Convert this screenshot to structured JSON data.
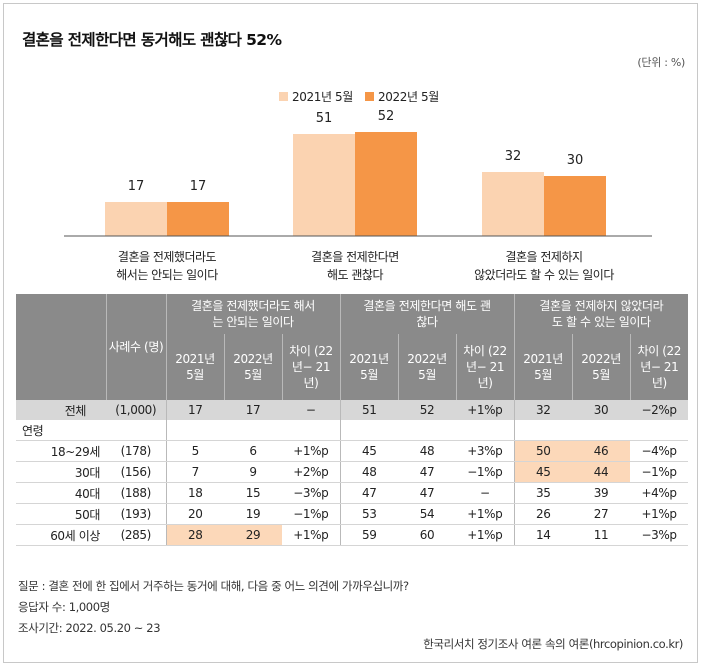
{
  "title": "결혼을 전제한다면 동거해도 괜찮다 52%",
  "unit": "(단위 : %)",
  "colors": {
    "light": "#fbd3b1",
    "dark": "#f59647",
    "header": "#8a8a8a",
    "total": "#d7d7d7",
    "highlight": "#fcd8b9"
  },
  "chart_data": {
    "type": "bar",
    "categories": [
      [
        "결혼을 전제했더라도",
        "해서는 안되는 일이다"
      ],
      [
        "결혼을 전제한다면",
        "해도 괜찮다"
      ],
      [
        "결혼을 전제하지",
        "않았더라도 할 수 있는 일이다"
      ]
    ],
    "series": [
      {
        "name": "2021년 5월",
        "values": [
          17,
          51,
          32
        ],
        "color": "#fbd3b1"
      },
      {
        "name": "2022년 5월",
        "values": [
          17,
          52,
          30
        ],
        "color": "#f59647"
      }
    ],
    "ylim": [
      0,
      60
    ],
    "legend": "top-center",
    "title": "결혼을 전제한다면 동거해도 괜찮다 52%"
  },
  "table": {
    "col_sample": "사례수 (명)",
    "groups": [
      "결혼을 전제했더라도 해서는 안되는 일이다",
      "결혼을 전제한다면 해도 괜찮다",
      "결혼을 전제하지 않았더라도 할 수 있는 일이다"
    ],
    "subheaders": [
      "2021년 5월",
      "2022년 5월",
      "차이 (22년− 21년)"
    ],
    "total": {
      "label": "전체",
      "n": "(1,000)",
      "values": [
        "17",
        "17",
        "−",
        "51",
        "52",
        "+1%p",
        "32",
        "30",
        "−2%p"
      ]
    },
    "group_label": "연령",
    "rows": [
      {
        "label": "18~29세",
        "n": "(178)",
        "values": [
          "5",
          "6",
          "+1%p",
          "45",
          "48",
          "+3%p",
          "50",
          "46",
          "−4%p"
        ],
        "highlight": [
          6,
          7
        ]
      },
      {
        "label": "30대",
        "n": "(156)",
        "values": [
          "7",
          "9",
          "+2%p",
          "48",
          "47",
          "−1%p",
          "45",
          "44",
          "−1%p"
        ],
        "highlight": [
          6,
          7
        ]
      },
      {
        "label": "40대",
        "n": "(188)",
        "values": [
          "18",
          "15",
          "−3%p",
          "47",
          "47",
          "−",
          "35",
          "39",
          "+4%p"
        ],
        "highlight": []
      },
      {
        "label": "50대",
        "n": "(193)",
        "values": [
          "20",
          "19",
          "−1%p",
          "53",
          "54",
          "+1%p",
          "26",
          "27",
          "+1%p"
        ],
        "highlight": []
      },
      {
        "label": "60세 이상",
        "n": "(285)",
        "values": [
          "28",
          "29",
          "+1%p",
          "59",
          "60",
          "+1%p",
          "14",
          "11",
          "−3%p"
        ],
        "highlight": [
          0,
          1
        ]
      }
    ]
  },
  "notes": {
    "question": "질문 : 결혼 전에 한 집에서 거주하는 동거에 대해, 다음 중 어느 의견에 가까우십니까?",
    "respondents": "응답자 수: 1,000명",
    "period": "조사기간: 2022. 05.20 ~ 23"
  },
  "source": "한국리서치 정기조사 여론 속의 여론(hrcopinion.co.kr)"
}
